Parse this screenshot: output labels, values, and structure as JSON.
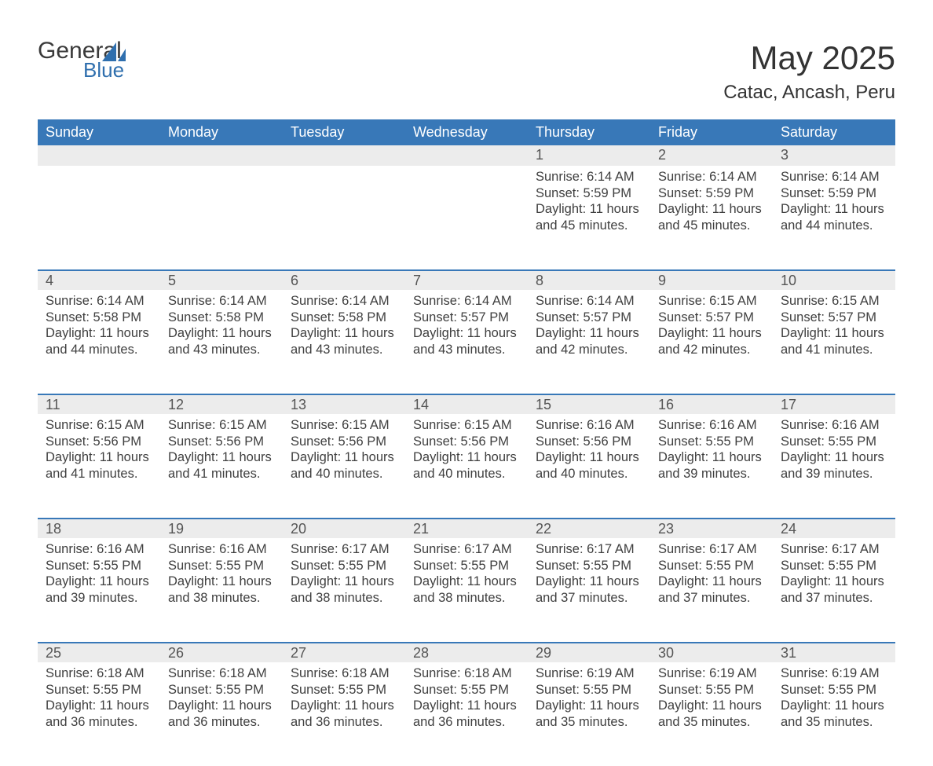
{
  "brand": {
    "general": "General",
    "blue": "Blue"
  },
  "title": "May 2025",
  "location": "Catac, Ancash, Peru",
  "colors": {
    "header_bg": "#3878b8",
    "header_text": "#ffffff",
    "daynum_bg": "#ececec",
    "row_border": "#3878b8",
    "body_text": "#3f3f3f",
    "title_text": "#333333",
    "logo_blue": "#2f6fae",
    "page_bg": "#ffffff"
  },
  "weekdays": [
    "Sunday",
    "Monday",
    "Tuesday",
    "Wednesday",
    "Thursday",
    "Friday",
    "Saturday"
  ],
  "start_weekday_index": 4,
  "days": [
    {
      "n": 1,
      "sunrise": "6:14 AM",
      "sunset": "5:59 PM",
      "daylight": "11 hours and 45 minutes."
    },
    {
      "n": 2,
      "sunrise": "6:14 AM",
      "sunset": "5:59 PM",
      "daylight": "11 hours and 45 minutes."
    },
    {
      "n": 3,
      "sunrise": "6:14 AM",
      "sunset": "5:59 PM",
      "daylight": "11 hours and 44 minutes."
    },
    {
      "n": 4,
      "sunrise": "6:14 AM",
      "sunset": "5:58 PM",
      "daylight": "11 hours and 44 minutes."
    },
    {
      "n": 5,
      "sunrise": "6:14 AM",
      "sunset": "5:58 PM",
      "daylight": "11 hours and 43 minutes."
    },
    {
      "n": 6,
      "sunrise": "6:14 AM",
      "sunset": "5:58 PM",
      "daylight": "11 hours and 43 minutes."
    },
    {
      "n": 7,
      "sunrise": "6:14 AM",
      "sunset": "5:57 PM",
      "daylight": "11 hours and 43 minutes."
    },
    {
      "n": 8,
      "sunrise": "6:14 AM",
      "sunset": "5:57 PM",
      "daylight": "11 hours and 42 minutes."
    },
    {
      "n": 9,
      "sunrise": "6:15 AM",
      "sunset": "5:57 PM",
      "daylight": "11 hours and 42 minutes."
    },
    {
      "n": 10,
      "sunrise": "6:15 AM",
      "sunset": "5:57 PM",
      "daylight": "11 hours and 41 minutes."
    },
    {
      "n": 11,
      "sunrise": "6:15 AM",
      "sunset": "5:56 PM",
      "daylight": "11 hours and 41 minutes."
    },
    {
      "n": 12,
      "sunrise": "6:15 AM",
      "sunset": "5:56 PM",
      "daylight": "11 hours and 41 minutes."
    },
    {
      "n": 13,
      "sunrise": "6:15 AM",
      "sunset": "5:56 PM",
      "daylight": "11 hours and 40 minutes."
    },
    {
      "n": 14,
      "sunrise": "6:15 AM",
      "sunset": "5:56 PM",
      "daylight": "11 hours and 40 minutes."
    },
    {
      "n": 15,
      "sunrise": "6:16 AM",
      "sunset": "5:56 PM",
      "daylight": "11 hours and 40 minutes."
    },
    {
      "n": 16,
      "sunrise": "6:16 AM",
      "sunset": "5:55 PM",
      "daylight": "11 hours and 39 minutes."
    },
    {
      "n": 17,
      "sunrise": "6:16 AM",
      "sunset": "5:55 PM",
      "daylight": "11 hours and 39 minutes."
    },
    {
      "n": 18,
      "sunrise": "6:16 AM",
      "sunset": "5:55 PM",
      "daylight": "11 hours and 39 minutes."
    },
    {
      "n": 19,
      "sunrise": "6:16 AM",
      "sunset": "5:55 PM",
      "daylight": "11 hours and 38 minutes."
    },
    {
      "n": 20,
      "sunrise": "6:17 AM",
      "sunset": "5:55 PM",
      "daylight": "11 hours and 38 minutes."
    },
    {
      "n": 21,
      "sunrise": "6:17 AM",
      "sunset": "5:55 PM",
      "daylight": "11 hours and 38 minutes."
    },
    {
      "n": 22,
      "sunrise": "6:17 AM",
      "sunset": "5:55 PM",
      "daylight": "11 hours and 37 minutes."
    },
    {
      "n": 23,
      "sunrise": "6:17 AM",
      "sunset": "5:55 PM",
      "daylight": "11 hours and 37 minutes."
    },
    {
      "n": 24,
      "sunrise": "6:17 AM",
      "sunset": "5:55 PM",
      "daylight": "11 hours and 37 minutes."
    },
    {
      "n": 25,
      "sunrise": "6:18 AM",
      "sunset": "5:55 PM",
      "daylight": "11 hours and 36 minutes."
    },
    {
      "n": 26,
      "sunrise": "6:18 AM",
      "sunset": "5:55 PM",
      "daylight": "11 hours and 36 minutes."
    },
    {
      "n": 27,
      "sunrise": "6:18 AM",
      "sunset": "5:55 PM",
      "daylight": "11 hours and 36 minutes."
    },
    {
      "n": 28,
      "sunrise": "6:18 AM",
      "sunset": "5:55 PM",
      "daylight": "11 hours and 36 minutes."
    },
    {
      "n": 29,
      "sunrise": "6:19 AM",
      "sunset": "5:55 PM",
      "daylight": "11 hours and 35 minutes."
    },
    {
      "n": 30,
      "sunrise": "6:19 AM",
      "sunset": "5:55 PM",
      "daylight": "11 hours and 35 minutes."
    },
    {
      "n": 31,
      "sunrise": "6:19 AM",
      "sunset": "5:55 PM",
      "daylight": "11 hours and 35 minutes."
    }
  ],
  "labels": {
    "sunrise": "Sunrise: ",
    "sunset": "Sunset: ",
    "daylight": "Daylight: "
  }
}
